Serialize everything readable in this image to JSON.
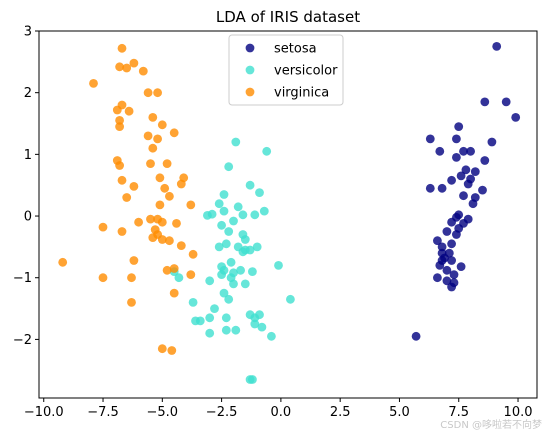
{
  "watermark": "CSDN @哆啦若不向梦",
  "chart_data": {
    "type": "scatter",
    "title": "LDA of IRIS dataset",
    "xlabel": "",
    "ylabel": "",
    "xlim": [
      -10.2,
      10.8
    ],
    "ylim": [
      -2.95,
      3.0
    ],
    "xticks": [
      -10.0,
      -7.5,
      -5.0,
      -2.5,
      0.0,
      2.5,
      5.0,
      7.5,
      10.0
    ],
    "xtick_labels": [
      "−10.0",
      "−7.5",
      "−5.0",
      "−2.5",
      "0.0",
      "2.5",
      "5.0",
      "7.5",
      "10.0"
    ],
    "yticks": [
      -2,
      -1,
      0,
      1,
      2,
      3
    ],
    "ytick_labels": [
      "−2",
      "−1",
      "0",
      "1",
      "2",
      "3"
    ],
    "grid": false,
    "legend_position": "top-center",
    "series": [
      {
        "name": "setosa",
        "color": "#000080",
        "points": [
          [
            9.1,
            2.75
          ],
          [
            9.5,
            1.85
          ],
          [
            8.6,
            1.85
          ],
          [
            9.9,
            1.6
          ],
          [
            7.5,
            1.45
          ],
          [
            6.3,
            1.25
          ],
          [
            7.4,
            1.25
          ],
          [
            8.9,
            1.2
          ],
          [
            6.7,
            1.05
          ],
          [
            7.7,
            1.05
          ],
          [
            8.0,
            1.05
          ],
          [
            7.4,
            0.95
          ],
          [
            8.6,
            0.9
          ],
          [
            7.8,
            0.75
          ],
          [
            8.2,
            0.72
          ],
          [
            7.6,
            0.65
          ],
          [
            8.0,
            0.6
          ],
          [
            7.2,
            0.58
          ],
          [
            7.9,
            0.52
          ],
          [
            6.3,
            0.45
          ],
          [
            6.8,
            0.45
          ],
          [
            8.5,
            0.42
          ],
          [
            7.7,
            0.33
          ],
          [
            8.2,
            0.3
          ],
          [
            8.1,
            0.2
          ],
          [
            7.5,
            0.02
          ],
          [
            7.4,
            -0.02
          ],
          [
            7.9,
            -0.05
          ],
          [
            7.2,
            -0.1
          ],
          [
            7.7,
            -0.12
          ],
          [
            7.5,
            -0.2
          ],
          [
            7.0,
            -0.25
          ],
          [
            7.4,
            -0.3
          ],
          [
            6.6,
            -0.4
          ],
          [
            7.2,
            -0.45
          ],
          [
            6.8,
            -0.5
          ],
          [
            6.8,
            -0.6
          ],
          [
            7.1,
            -0.6
          ],
          [
            6.9,
            -0.68
          ],
          [
            6.8,
            -0.72
          ],
          [
            7.2,
            -0.72
          ],
          [
            6.7,
            -0.8
          ],
          [
            7.6,
            -0.82
          ],
          [
            7.0,
            -0.88
          ],
          [
            7.3,
            -0.95
          ],
          [
            6.6,
            -1.0
          ],
          [
            7.0,
            -1.05
          ],
          [
            7.3,
            -1.08
          ],
          [
            7.2,
            -1.15
          ],
          [
            5.7,
            -1.95
          ]
        ]
      },
      {
        "name": "versicolor",
        "color": "#40E0D0",
        "points": [
          [
            -1.9,
            1.2
          ],
          [
            -0.6,
            1.05
          ],
          [
            -2.2,
            0.8
          ],
          [
            -1.3,
            0.5
          ],
          [
            -0.9,
            0.38
          ],
          [
            -2.4,
            0.35
          ],
          [
            -2.6,
            0.2
          ],
          [
            -1.8,
            0.15
          ],
          [
            -2.4,
            0.08
          ],
          [
            -0.7,
            0.08
          ],
          [
            -2.9,
            0.03
          ],
          [
            -1.6,
            0.02
          ],
          [
            -3.1,
            0.01
          ],
          [
            -1.1,
            0.02
          ],
          [
            -2.0,
            -0.08
          ],
          [
            -2.5,
            -0.15
          ],
          [
            -2.2,
            -0.25
          ],
          [
            -1.6,
            -0.3
          ],
          [
            -1.5,
            -0.38
          ],
          [
            -2.3,
            -0.45
          ],
          [
            -1.8,
            -0.5
          ],
          [
            -2.6,
            -0.5
          ],
          [
            -1.5,
            -0.55
          ],
          [
            -1.3,
            -0.55
          ],
          [
            -1.0,
            -0.5
          ],
          [
            -1.6,
            -0.58
          ],
          [
            -2.1,
            -0.75
          ],
          [
            -2.5,
            -0.82
          ],
          [
            -2.4,
            -0.88
          ],
          [
            -1.7,
            -0.88
          ],
          [
            -1.2,
            -0.9
          ],
          [
            -2.0,
            -0.92
          ],
          [
            -2.5,
            -0.95
          ],
          [
            -4.5,
            -0.9
          ],
          [
            -4.3,
            -1.0
          ],
          [
            -2.1,
            -1.0
          ],
          [
            -0.1,
            -0.8
          ],
          [
            -3.0,
            -1.05
          ],
          [
            -1.5,
            -1.1
          ],
          [
            -2.0,
            -1.1
          ],
          [
            -2.4,
            -1.25
          ],
          [
            -2.2,
            -1.35
          ],
          [
            -3.7,
            -1.4
          ],
          [
            0.4,
            -1.35
          ],
          [
            -2.8,
            -1.5
          ],
          [
            -1.3,
            -1.6
          ],
          [
            -0.9,
            -1.6
          ],
          [
            -3.0,
            -1.65
          ],
          [
            -2.3,
            -1.65
          ],
          [
            -1.1,
            -1.65
          ],
          [
            -3.6,
            -1.7
          ],
          [
            -1.1,
            -1.75
          ],
          [
            -0.8,
            -1.8
          ],
          [
            -2.3,
            -1.85
          ],
          [
            -1.9,
            -1.85
          ],
          [
            -0.4,
            -1.95
          ],
          [
            -3.0,
            -1.9
          ],
          [
            -1.2,
            -2.65
          ],
          [
            -1.3,
            -2.65
          ],
          [
            -3.4,
            -1.7
          ]
        ]
      },
      {
        "name": "virginica",
        "color": "#FF8C00",
        "points": [
          [
            -6.7,
            2.72
          ],
          [
            -6.2,
            2.48
          ],
          [
            -6.8,
            2.42
          ],
          [
            -6.5,
            2.4
          ],
          [
            -5.8,
            2.35
          ],
          [
            -7.9,
            2.15
          ],
          [
            -5.6,
            2.0
          ],
          [
            -5.2,
            2.0
          ],
          [
            -6.7,
            1.8
          ],
          [
            -6.9,
            1.72
          ],
          [
            -6.4,
            1.7
          ],
          [
            -5.4,
            1.6
          ],
          [
            -6.8,
            1.55
          ],
          [
            -5.0,
            1.48
          ],
          [
            -6.8,
            1.45
          ],
          [
            -4.5,
            1.35
          ],
          [
            -5.6,
            1.3
          ],
          [
            -5.2,
            1.25
          ],
          [
            -5.4,
            1.1
          ],
          [
            -6.9,
            0.9
          ],
          [
            -6.8,
            0.82
          ],
          [
            -5.5,
            0.85
          ],
          [
            -4.8,
            0.85
          ],
          [
            -5.1,
            0.62
          ],
          [
            -4.1,
            0.62
          ],
          [
            -6.7,
            0.58
          ],
          [
            -4.2,
            0.52
          ],
          [
            -6.2,
            0.48
          ],
          [
            -4.9,
            0.45
          ],
          [
            -6.5,
            0.3
          ],
          [
            -4.7,
            0.32
          ],
          [
            -5.1,
            0.18
          ],
          [
            -3.8,
            0.18
          ],
          [
            -6.0,
            -0.1
          ],
          [
            -5.5,
            -0.05
          ],
          [
            -5.2,
            -0.05
          ],
          [
            -5.0,
            -0.1
          ],
          [
            -4.4,
            -0.12
          ],
          [
            -5.3,
            -0.22
          ],
          [
            -5.2,
            -0.3
          ],
          [
            -7.5,
            -0.18
          ],
          [
            -6.7,
            -0.25
          ],
          [
            -5.4,
            -0.35
          ],
          [
            -5.0,
            -0.38
          ],
          [
            -4.7,
            -0.4
          ],
          [
            -4.2,
            -0.48
          ],
          [
            -3.7,
            -0.62
          ],
          [
            -6.2,
            -0.72
          ],
          [
            -4.5,
            -0.85
          ],
          [
            -3.8,
            -0.95
          ],
          [
            -7.5,
            -1.0
          ],
          [
            -6.3,
            -1.0
          ],
          [
            -6.3,
            -1.4
          ],
          [
            -9.2,
            -0.75
          ],
          [
            -4.8,
            -0.88
          ],
          [
            -5.0,
            -2.15
          ],
          [
            -4.6,
            -2.18
          ],
          [
            -4.5,
            -1.25
          ]
        ]
      }
    ]
  }
}
